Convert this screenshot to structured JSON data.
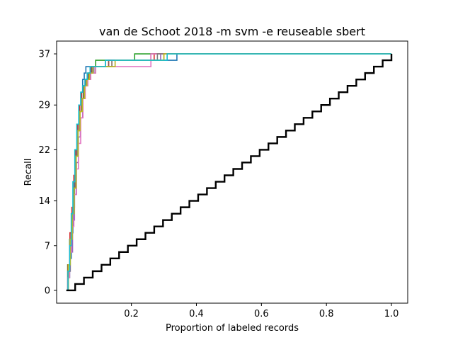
{
  "chart_data": {
    "type": "line",
    "title": "van de Schoot 2018 -m svm -e reuseable sbert",
    "xlabel": "Proportion of labeled records",
    "ylabel": "Recall",
    "xlim": [
      -0.03,
      1.05
    ],
    "ylim": [
      -2,
      39
    ],
    "x_ticks": [
      0.2,
      0.4,
      0.6,
      0.8,
      1.0
    ],
    "x_tick_labels": [
      "0.2",
      "0.4",
      "0.6",
      "0.8",
      "1.0"
    ],
    "y_ticks": [
      0,
      7,
      14,
      22,
      29,
      37
    ],
    "y_tick_labels": [
      "0",
      "7",
      "14",
      "22",
      "29",
      "37"
    ],
    "grid": false,
    "total_relevant": 37,
    "random_baseline": {
      "color": "#000000",
      "x_end": 1.0,
      "y_end": 37
    },
    "series": [
      {
        "color": "#1f77b4",
        "x": [
          0.0,
          0.005,
          0.01,
          0.015,
          0.02,
          0.025,
          0.03,
          0.035,
          0.04,
          0.045,
          0.05,
          0.055,
          0.06,
          0.07,
          0.09,
          0.12,
          0.18,
          0.25,
          0.34,
          1.0
        ],
        "y": [
          0,
          2,
          5,
          9,
          13,
          18,
          22,
          26,
          29,
          31,
          33,
          34,
          35,
          35,
          35,
          36,
          36,
          36,
          37,
          37
        ]
      },
      {
        "color": "#ff7f0e",
        "x": [
          0.0,
          0.006,
          0.012,
          0.018,
          0.024,
          0.03,
          0.036,
          0.042,
          0.048,
          0.055,
          0.062,
          0.07,
          0.08,
          0.1,
          0.14,
          0.2,
          0.3,
          1.0
        ],
        "y": [
          0,
          3,
          7,
          11,
          16,
          21,
          25,
          28,
          30,
          32,
          33,
          34,
          35,
          35,
          36,
          36,
          37,
          37
        ]
      },
      {
        "color": "#2ca02c",
        "x": [
          0.0,
          0.004,
          0.01,
          0.016,
          0.022,
          0.028,
          0.034,
          0.04,
          0.046,
          0.052,
          0.058,
          0.065,
          0.075,
          0.09,
          0.12,
          0.205,
          0.21,
          1.0
        ],
        "y": [
          0,
          4,
          8,
          12,
          17,
          21,
          25,
          28,
          30,
          32,
          33,
          34,
          34,
          36,
          36,
          36,
          37,
          37
        ]
      },
      {
        "color": "#d62728",
        "x": [
          0.0,
          0.005,
          0.011,
          0.017,
          0.023,
          0.029,
          0.035,
          0.041,
          0.047,
          0.054,
          0.06,
          0.068,
          0.078,
          0.095,
          0.13,
          0.19,
          0.27,
          1.0
        ],
        "y": [
          0,
          4,
          9,
          13,
          18,
          22,
          26,
          29,
          31,
          32,
          33,
          34,
          35,
          35,
          36,
          36,
          37,
          37
        ]
      },
      {
        "color": "#9467bd",
        "x": [
          0.0,
          0.006,
          0.012,
          0.019,
          0.025,
          0.031,
          0.037,
          0.043,
          0.05,
          0.057,
          0.064,
          0.072,
          0.085,
          0.1,
          0.15,
          0.22,
          0.29,
          1.0
        ],
        "y": [
          0,
          3,
          6,
          11,
          15,
          20,
          24,
          27,
          30,
          32,
          33,
          34,
          35,
          35,
          36,
          36,
          37,
          37
        ]
      },
      {
        "color": "#8c564b",
        "x": [
          0.0,
          0.005,
          0.01,
          0.016,
          0.022,
          0.028,
          0.034,
          0.04,
          0.046,
          0.053,
          0.06,
          0.067,
          0.076,
          0.09,
          0.13,
          0.2,
          0.26,
          1.0
        ],
        "y": [
          0,
          3,
          7,
          12,
          16,
          21,
          25,
          28,
          30,
          32,
          33,
          34,
          35,
          35,
          36,
          36,
          37,
          37
        ]
      },
      {
        "color": "#e377c2",
        "x": [
          0.0,
          0.004,
          0.01,
          0.016,
          0.023,
          0.03,
          0.037,
          0.044,
          0.051,
          0.058,
          0.066,
          0.075,
          0.09,
          0.12,
          0.2,
          0.255,
          0.26,
          1.0
        ],
        "y": [
          0,
          2,
          6,
          10,
          15,
          19,
          23,
          27,
          30,
          32,
          33,
          34,
          35,
          35,
          35,
          35,
          37,
          37
        ]
      },
      {
        "color": "#7f7f7f",
        "x": [
          0.0,
          0.005,
          0.011,
          0.017,
          0.023,
          0.029,
          0.035,
          0.041,
          0.048,
          0.055,
          0.062,
          0.07,
          0.08,
          0.1,
          0.14,
          0.21,
          0.28,
          1.0
        ],
        "y": [
          0,
          3,
          8,
          12,
          17,
          21,
          25,
          28,
          30,
          32,
          33,
          34,
          35,
          35,
          36,
          36,
          37,
          37
        ]
      },
      {
        "color": "#bcbd22",
        "x": [
          0.0,
          0.006,
          0.012,
          0.018,
          0.024,
          0.03,
          0.036,
          0.042,
          0.049,
          0.056,
          0.063,
          0.071,
          0.082,
          0.1,
          0.15,
          0.23,
          0.3,
          1.0
        ],
        "y": [
          0,
          4,
          8,
          12,
          16,
          21,
          25,
          28,
          30,
          32,
          33,
          34,
          35,
          35,
          36,
          36,
          37,
          37
        ]
      },
      {
        "color": "#17becf",
        "x": [
          0.0,
          0.005,
          0.01,
          0.015,
          0.02,
          0.026,
          0.032,
          0.038,
          0.044,
          0.05,
          0.057,
          0.064,
          0.073,
          0.088,
          0.12,
          0.19,
          0.31,
          1.0
        ],
        "y": [
          0,
          3,
          7,
          12,
          17,
          22,
          26,
          29,
          31,
          32,
          33,
          34,
          35,
          35,
          36,
          36,
          37,
          37
        ]
      }
    ]
  }
}
